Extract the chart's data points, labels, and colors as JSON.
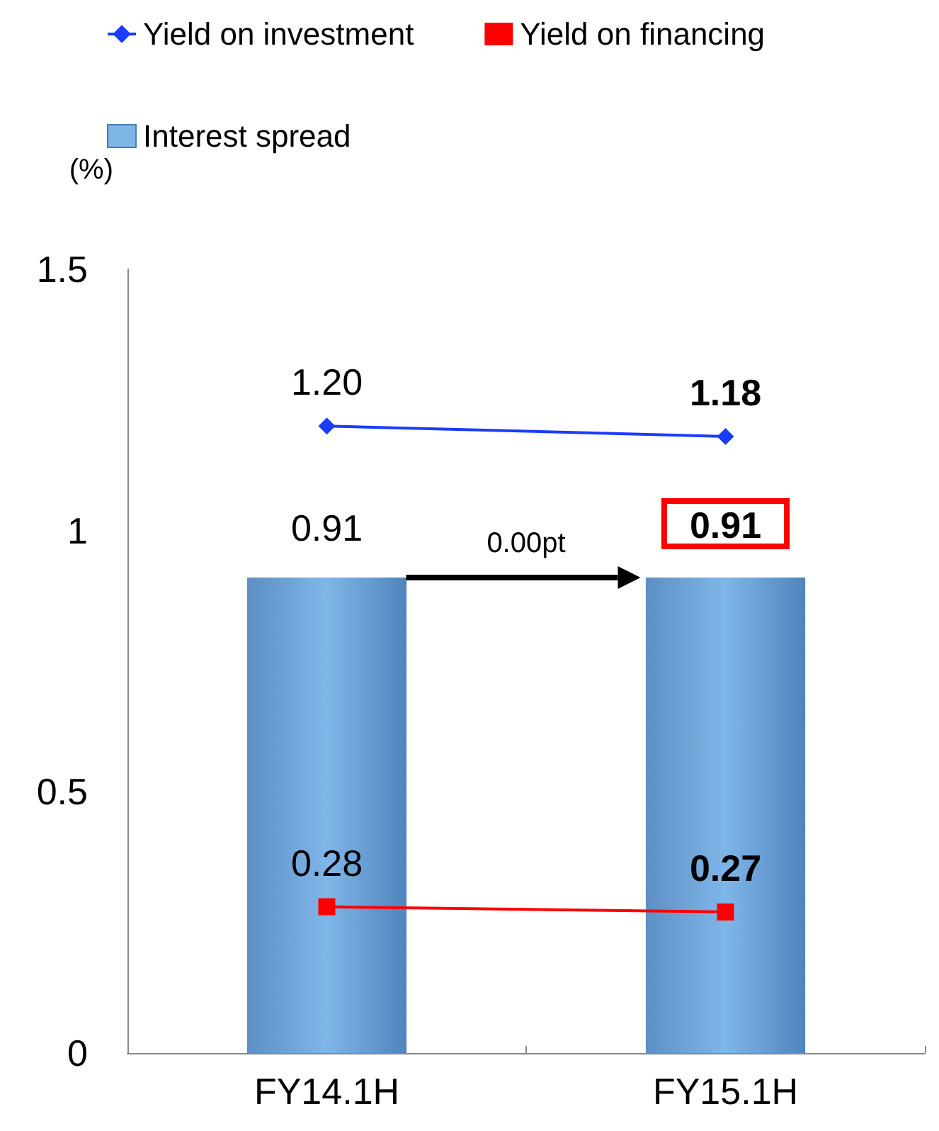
{
  "chart_data": {
    "type": "bar",
    "categories": [
      "FY14.1H",
      "FY15.1H"
    ],
    "ylabel": "(%)",
    "ylim": [
      0,
      1.5
    ],
    "yticks": [
      0,
      0.5,
      1,
      1.5
    ],
    "grid": false,
    "legend": "top",
    "series": [
      {
        "name": "Yield on investment",
        "type": "line",
        "color": "#1a3cff",
        "marker": "diamond",
        "values": [
          1.2,
          1.18
        ],
        "value_labels": [
          "1.20",
          "1.18"
        ]
      },
      {
        "name": "Yield on financing",
        "type": "line",
        "color": "#ff0000",
        "marker": "square",
        "values": [
          0.28,
          0.27
        ],
        "value_labels": [
          "0.28",
          "0.27"
        ]
      },
      {
        "name": "Interest spread",
        "color": "#7fb6e8",
        "values": [
          0.91,
          0.91
        ],
        "value_labels": [
          "0.91",
          "0.91"
        ]
      }
    ],
    "annotations": [
      "0.00pt"
    ]
  }
}
